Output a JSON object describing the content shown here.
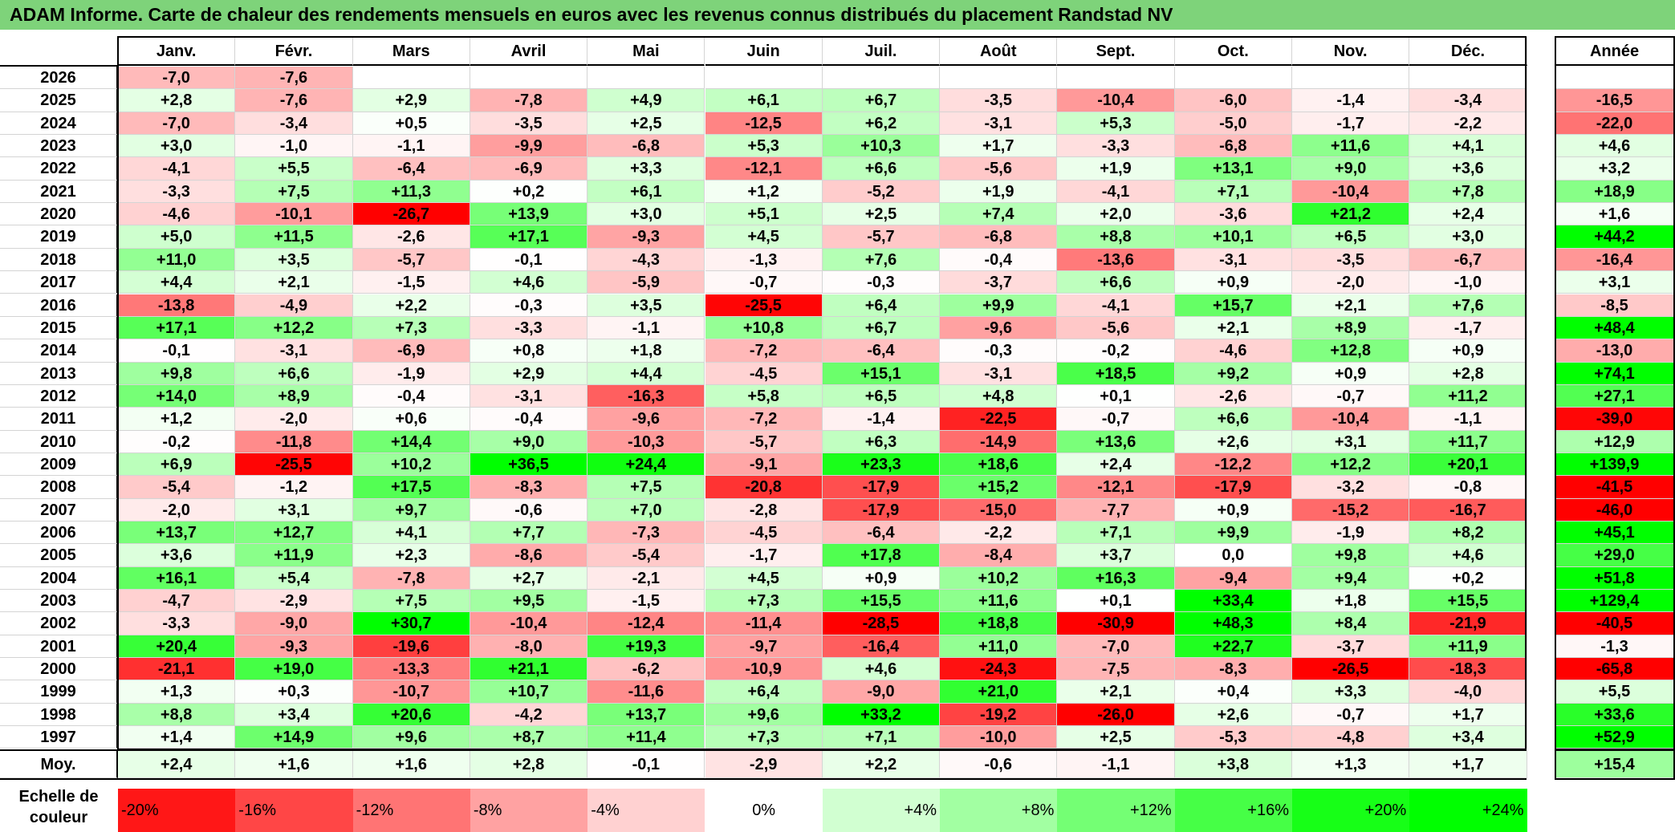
{
  "title": "ADAM Informe. Carte de chaleur des rendements mensuels en euros avec les revenus connus distribués du placement Randstad NV",
  "months": [
    "Janv.",
    "Févr.",
    "Mars",
    "Avril",
    "Mai",
    "Juin",
    "Juil.",
    "Août",
    "Sept.",
    "Oct.",
    "Nov.",
    "Déc."
  ],
  "year_header": "Année",
  "avg_label": "Moy.",
  "scale_label": "Echelle de couleur",
  "colors": {
    "neg_max": "#ff0000",
    "zero": "#ffffff",
    "pos_max": "#00ff00",
    "title_bg": "#7ed37a"
  },
  "chart_data": {
    "type": "heatmap",
    "title": "ADAM Informe. Carte de chaleur des rendements mensuels en euros avec les revenus connus distribués du placement Randstad NV",
    "x": [
      "Janv.",
      "Févr.",
      "Mars",
      "Avril",
      "Mai",
      "Juin",
      "Juil.",
      "Août",
      "Sept.",
      "Oct.",
      "Nov.",
      "Déc."
    ],
    "rows": [
      {
        "year": "2026",
        "values": [
          "-7,0",
          "-7,6",
          "",
          "",
          "",
          "",
          "",
          "",
          "",
          "",
          "",
          ""
        ],
        "annual": ""
      },
      {
        "year": "2025",
        "values": [
          "+2,8",
          "-7,6",
          "+2,9",
          "-7,8",
          "+4,9",
          "+6,1",
          "+6,7",
          "-3,5",
          "-10,4",
          "-6,0",
          "-1,4",
          "-3,4"
        ],
        "annual": "-16,5"
      },
      {
        "year": "2024",
        "values": [
          "-7,0",
          "-3,4",
          "+0,5",
          "-3,5",
          "+2,5",
          "-12,5",
          "+6,2",
          "-3,1",
          "+5,3",
          "-5,0",
          "-1,7",
          "-2,2"
        ],
        "annual": "-22,0"
      },
      {
        "year": "2023",
        "values": [
          "+3,0",
          "-1,0",
          "-1,1",
          "-9,9",
          "-6,8",
          "+5,3",
          "+10,3",
          "+1,7",
          "-3,3",
          "-6,8",
          "+11,6",
          "+4,1"
        ],
        "annual": "+4,6"
      },
      {
        "year": "2022",
        "values": [
          "-4,1",
          "+5,5",
          "-6,4",
          "-6,9",
          "+3,3",
          "-12,1",
          "+6,6",
          "-5,6",
          "+1,9",
          "+13,1",
          "+9,0",
          "+3,6"
        ],
        "annual": "+3,2"
      },
      {
        "year": "2021",
        "values": [
          "-3,3",
          "+7,5",
          "+11,3",
          "+0,2",
          "+6,1",
          "+1,2",
          "-5,2",
          "+1,9",
          "-4,1",
          "+7,1",
          "-10,4",
          "+7,8"
        ],
        "annual": "+18,9"
      },
      {
        "year": "2020",
        "values": [
          "-4,6",
          "-10,1",
          "-26,7",
          "+13,9",
          "+3,0",
          "+5,1",
          "+2,5",
          "+7,4",
          "+2,0",
          "-3,6",
          "+21,2",
          "+2,4"
        ],
        "annual": "+1,6"
      },
      {
        "year": "2019",
        "values": [
          "+5,0",
          "+11,5",
          "-2,6",
          "+17,1",
          "-9,3",
          "+4,5",
          "-5,7",
          "-6,8",
          "+8,8",
          "+10,1",
          "+6,5",
          "+3,0"
        ],
        "annual": "+44,2"
      },
      {
        "year": "2018",
        "values": [
          "+11,0",
          "+3,5",
          "-5,7",
          "-0,1",
          "-4,3",
          "-1,3",
          "+7,6",
          "-0,4",
          "-13,6",
          "-3,1",
          "-3,5",
          "-6,7"
        ],
        "annual": "-16,4"
      },
      {
        "year": "2017",
        "values": [
          "+4,4",
          "+2,1",
          "-1,5",
          "+4,6",
          "-5,9",
          "-0,7",
          "-0,3",
          "-3,7",
          "+6,6",
          "+0,9",
          "-2,0",
          "-1,0"
        ],
        "annual": "+3,1"
      },
      {
        "year": "2016",
        "values": [
          "-13,8",
          "-4,9",
          "+2,2",
          "-0,3",
          "+3,5",
          "-25,5",
          "+6,4",
          "+9,9",
          "-4,1",
          "+15,7",
          "+2,1",
          "+7,6"
        ],
        "annual": "-8,5"
      },
      {
        "year": "2015",
        "values": [
          "+17,1",
          "+12,2",
          "+7,3",
          "-3,3",
          "-1,1",
          "+10,8",
          "+6,7",
          "-9,6",
          "-5,6",
          "+2,1",
          "+8,9",
          "-1,7"
        ],
        "annual": "+48,4"
      },
      {
        "year": "2014",
        "values": [
          "-0,1",
          "-3,1",
          "-6,9",
          "+0,8",
          "+1,8",
          "-7,2",
          "-6,4",
          "-0,3",
          "-0,2",
          "-4,6",
          "+12,8",
          "+0,9"
        ],
        "annual": "-13,0"
      },
      {
        "year": "2013",
        "values": [
          "+9,8",
          "+6,6",
          "-1,9",
          "+2,9",
          "+4,4",
          "-4,5",
          "+15,1",
          "-3,1",
          "+18,5",
          "+9,2",
          "+0,9",
          "+2,8"
        ],
        "annual": "+74,1"
      },
      {
        "year": "2012",
        "values": [
          "+14,0",
          "+8,9",
          "-0,4",
          "-3,1",
          "-16,3",
          "+5,8",
          "+6,5",
          "+4,8",
          "+0,1",
          "-2,6",
          "-0,7",
          "+11,2"
        ],
        "annual": "+27,1"
      },
      {
        "year": "2011",
        "values": [
          "+1,2",
          "-2,0",
          "+0,6",
          "-0,4",
          "-9,6",
          "-7,2",
          "-1,4",
          "-22,5",
          "-0,7",
          "+6,6",
          "-10,4",
          "-1,1"
        ],
        "annual": "-39,0"
      },
      {
        "year": "2010",
        "values": [
          "-0,2",
          "-11,8",
          "+14,4",
          "+9,0",
          "-10,3",
          "-5,7",
          "+6,3",
          "-14,9",
          "+13,6",
          "+2,6",
          "+3,1",
          "+11,7"
        ],
        "annual": "+12,9"
      },
      {
        "year": "2009",
        "values": [
          "+6,9",
          "-25,5",
          "+10,2",
          "+36,5",
          "+24,4",
          "-9,1",
          "+23,3",
          "+18,6",
          "+2,4",
          "-12,2",
          "+12,2",
          "+20,1"
        ],
        "annual": "+139,9"
      },
      {
        "year": "2008",
        "values": [
          "-5,4",
          "-1,2",
          "+17,5",
          "-8,3",
          "+7,5",
          "-20,8",
          "-17,9",
          "+15,2",
          "-12,1",
          "-17,9",
          "-3,2",
          "-0,8"
        ],
        "annual": "-41,5"
      },
      {
        "year": "2007",
        "values": [
          "-2,0",
          "+3,1",
          "+9,7",
          "-0,6",
          "+7,0",
          "-2,8",
          "-17,9",
          "-15,0",
          "-7,7",
          "+0,9",
          "-15,2",
          "-16,7"
        ],
        "annual": "-46,0"
      },
      {
        "year": "2006",
        "values": [
          "+13,7",
          "+12,7",
          "+4,1",
          "+7,7",
          "-7,3",
          "-4,5",
          "-6,4",
          "-2,2",
          "+7,1",
          "+9,9",
          "-1,9",
          "+8,2"
        ],
        "annual": "+45,1"
      },
      {
        "year": "2005",
        "values": [
          "+3,6",
          "+11,9",
          "+2,3",
          "-8,6",
          "-5,4",
          "-1,7",
          "+17,8",
          "-8,4",
          "+3,7",
          "0,0",
          "+9,8",
          "+4,6"
        ],
        "annual": "+29,0"
      },
      {
        "year": "2004",
        "values": [
          "+16,1",
          "+5,4",
          "-7,8",
          "+2,7",
          "-2,1",
          "+4,5",
          "+0,9",
          "+10,2",
          "+16,3",
          "-9,4",
          "+9,4",
          "+0,2"
        ],
        "annual": "+51,8"
      },
      {
        "year": "2003",
        "values": [
          "-4,7",
          "-2,9",
          "+7,5",
          "+9,5",
          "-1,5",
          "+7,3",
          "+15,5",
          "+11,6",
          "+0,1",
          "+33,4",
          "+1,8",
          "+15,5"
        ],
        "annual": "+129,4"
      },
      {
        "year": "2002",
        "values": [
          "-3,3",
          "-9,0",
          "+30,7",
          "-10,4",
          "-12,4",
          "-11,4",
          "-28,5",
          "+18,8",
          "-30,9",
          "+48,3",
          "+8,4",
          "-21,9"
        ],
        "annual": "-40,5"
      },
      {
        "year": "2001",
        "values": [
          "+20,4",
          "-9,3",
          "-19,6",
          "-8,0",
          "+19,3",
          "-9,7",
          "-16,4",
          "+11,0",
          "-7,0",
          "+22,7",
          "-3,7",
          "+11,9"
        ],
        "annual": "-1,3"
      },
      {
        "year": "2000",
        "values": [
          "-21,1",
          "+19,0",
          "-13,3",
          "+21,1",
          "-6,2",
          "-10,9",
          "+4,6",
          "-24,3",
          "-7,5",
          "-8,3",
          "-26,5",
          "-18,3"
        ],
        "annual": "-65,8"
      },
      {
        "year": "1999",
        "values": [
          "+1,3",
          "+0,3",
          "-10,7",
          "+10,7",
          "-11,6",
          "+6,4",
          "-9,0",
          "+21,0",
          "+2,1",
          "+0,4",
          "+3,3",
          "-4,0"
        ],
        "annual": "+5,5"
      },
      {
        "year": "1998",
        "values": [
          "+8,8",
          "+3,4",
          "+20,6",
          "-4,2",
          "+13,7",
          "+9,6",
          "+33,2",
          "-19,2",
          "-26,0",
          "+2,6",
          "-0,7",
          "+1,7"
        ],
        "annual": "+33,6"
      },
      {
        "year": "1997",
        "values": [
          "+1,4",
          "+14,9",
          "+9,6",
          "+8,7",
          "+11,4",
          "+7,3",
          "+7,1",
          "-10,0",
          "+2,5",
          "-5,3",
          "-4,8",
          "+3,4"
        ],
        "annual": "+52,9"
      }
    ],
    "averages": [
      "+2,4",
      "+1,6",
      "+1,6",
      "+2,8",
      "-0,1",
      "-2,9",
      "+2,2",
      "-0,6",
      "-1,1",
      "+3,8",
      "+1,3",
      "+1,7"
    ],
    "average_annual": "+15,4",
    "color_scale": [
      "-20%",
      "-16%",
      "-12%",
      "-8%",
      "-4%",
      "0%",
      "+4%",
      "+8%",
      "+12%",
      "+16%",
      "+20%",
      "+24%"
    ]
  }
}
